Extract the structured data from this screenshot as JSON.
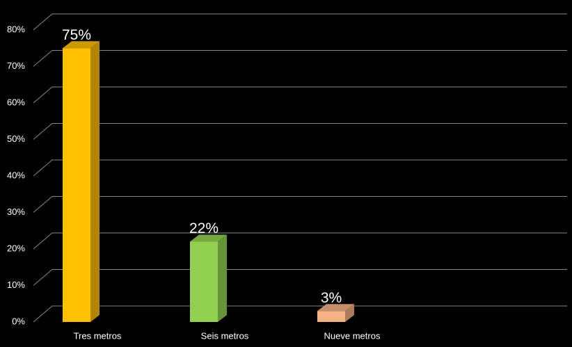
{
  "chart_data": {
    "type": "bar3d",
    "categories": [
      "Tres metros",
      "Seis metros",
      "Nueve metros"
    ],
    "values": [
      75,
      22,
      3
    ],
    "value_labels": [
      "75%",
      "22%",
      "3%"
    ],
    "colors": [
      "#ffc000",
      "#92d050",
      "#f4b183"
    ],
    "ylim": [
      0,
      80
    ],
    "yticks": [
      {
        "value": 0,
        "label": "0%"
      },
      {
        "value": 10,
        "label": "10%"
      },
      {
        "value": 20,
        "label": "20%"
      },
      {
        "value": 30,
        "label": "30%"
      },
      {
        "value": 40,
        "label": "40%"
      },
      {
        "value": 50,
        "label": "50%"
      },
      {
        "value": 60,
        "label": "60%"
      },
      {
        "value": 70,
        "label": "70%"
      },
      {
        "value": 80,
        "label": "80%"
      }
    ],
    "grid": true
  }
}
